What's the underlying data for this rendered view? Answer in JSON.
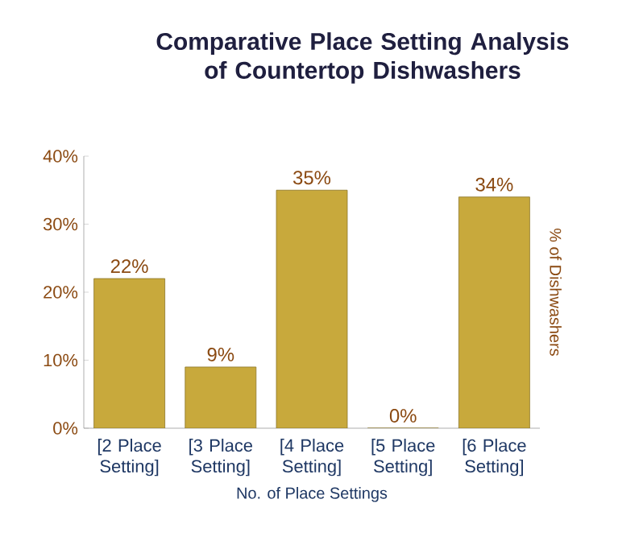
{
  "chart_data": {
    "type": "bar",
    "title": "Comparative Place Setting Analysis of Countertop Dishwashers",
    "categories": [
      "[2 Place Setting]",
      "[3 Place Setting]",
      "[4 Place Setting]",
      "[5 Place Setting]",
      "[6 Place Setting]"
    ],
    "values": [
      22,
      9,
      35,
      0,
      34
    ],
    "value_labels": [
      "22%",
      "9%",
      "35%",
      "0%",
      "34%"
    ],
    "color": "#c8a93c",
    "xlabel": "No. of Place Settings",
    "ylabel": "% of Dishwashers",
    "ylim": [
      0,
      40
    ],
    "yticks": [
      {
        "value": 0,
        "label": "0%"
      },
      {
        "value": 10,
        "label": "10%"
      },
      {
        "value": 20,
        "label": "20%"
      },
      {
        "value": 30,
        "label": "30%"
      },
      {
        "value": 40,
        "label": "40%"
      }
    ],
    "grid": false
  }
}
